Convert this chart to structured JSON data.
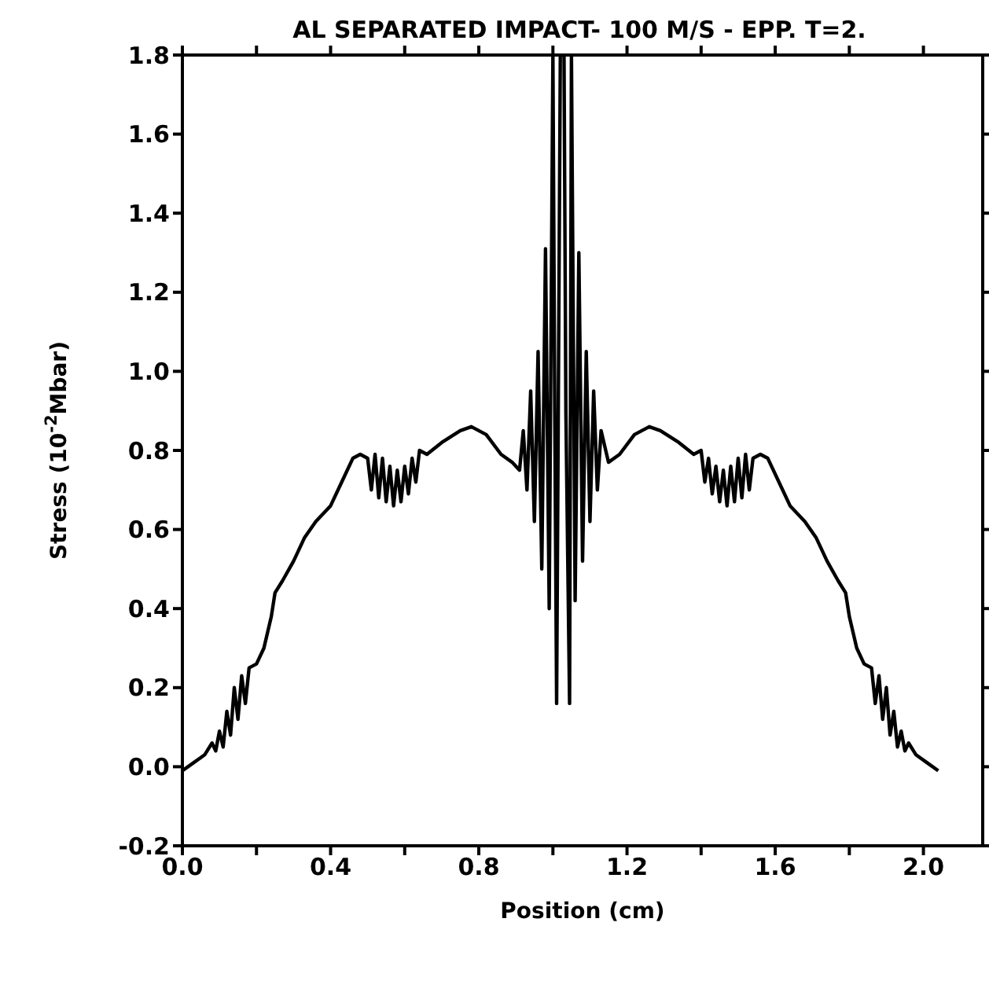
{
  "chart_data": {
    "type": "line",
    "title": "AL SEPARATED IMPACT- 100 M/S -  EPP. T=2.",
    "xlabel": "Position (cm)",
    "ylabel": "Stress (10$^{-2}$Mbar)",
    "xlim": [
      0,
      2.16
    ],
    "ylim": [
      -0.2,
      1.8
    ],
    "xticks": [
      {
        "value": 0,
        "label": "0.0"
      },
      {
        "value": 0.2,
        "label": null
      },
      {
        "value": 0.4,
        "label": "0.4"
      },
      {
        "value": 0.6,
        "label": null
      },
      {
        "value": 0.8,
        "label": "0.8"
      },
      {
        "value": 1.0,
        "label": null
      },
      {
        "value": 1.2,
        "label": "1.2"
      },
      {
        "value": 1.4,
        "label": null
      },
      {
        "value": 1.6,
        "label": "1.6"
      },
      {
        "value": 1.8,
        "label": null
      },
      {
        "value": 2.0,
        "label": "2.0"
      }
    ],
    "yticks": [
      {
        "value": -0.2,
        "label": "-0.2"
      },
      {
        "value": 0,
        "label": "0.0"
      },
      {
        "value": 0.2,
        "label": "0.2"
      },
      {
        "value": 0.4,
        "label": "0.4"
      },
      {
        "value": 0.6,
        "label": "0.6"
      },
      {
        "value": 0.8,
        "label": "0.8"
      },
      {
        "value": 1.0,
        "label": "1.0"
      },
      {
        "value": 1.2,
        "label": "1.2"
      },
      {
        "value": 1.4,
        "label": "1.4"
      },
      {
        "value": 1.6,
        "label": "1.6"
      },
      {
        "value": 1.8,
        "label": "1.8"
      }
    ],
    "legend": false,
    "marker": "none",
    "line_style": "solid",
    "series": [
      {
        "color": "#000000",
        "x": [
          0,
          0.03,
          0.06,
          0.08,
          0.09,
          0.1,
          0.11,
          0.12,
          0.13,
          0.14,
          0.15,
          0.16,
          0.17,
          0.18,
          0.2,
          0.22,
          0.24,
          0.25,
          0.27,
          0.3,
          0.33,
          0.36,
          0.4,
          0.43,
          0.46,
          0.48,
          0.5,
          0.51,
          0.52,
          0.53,
          0.54,
          0.55,
          0.56,
          0.57,
          0.58,
          0.59,
          0.6,
          0.61,
          0.62,
          0.63,
          0.64,
          0.66,
          0.7,
          0.75,
          0.78,
          0.82,
          0.86,
          0.89,
          0.91,
          0.92,
          0.93,
          0.94,
          0.95,
          0.96,
          0.97,
          0.98,
          0.99,
          1.0,
          1.005,
          1.01,
          1.02,
          1.03,
          1.035,
          1.045,
          1.05,
          1.06,
          1.07,
          1.08,
          1.09,
          1.1,
          1.11,
          1.12,
          1.13,
          1.15,
          1.18,
          1.22,
          1.26,
          1.29,
          1.34,
          1.38,
          1.4,
          1.41,
          1.42,
          1.43,
          1.44,
          1.45,
          1.46,
          1.47,
          1.48,
          1.49,
          1.5,
          1.51,
          1.52,
          1.53,
          1.54,
          1.56,
          1.58,
          1.61,
          1.64,
          1.68,
          1.71,
          1.74,
          1.77,
          1.79,
          1.8,
          1.82,
          1.84,
          1.86,
          1.87,
          1.88,
          1.89,
          1.9,
          1.91,
          1.92,
          1.93,
          1.94,
          1.95,
          1.96,
          1.98,
          2.01,
          2.04
        ],
        "values": [
          -0.01,
          0.01,
          0.03,
          0.06,
          0.04,
          0.09,
          0.05,
          0.14,
          0.08,
          0.2,
          0.12,
          0.23,
          0.16,
          0.25,
          0.26,
          0.3,
          0.38,
          0.44,
          0.47,
          0.52,
          0.58,
          0.62,
          0.66,
          0.72,
          0.78,
          0.79,
          0.78,
          0.7,
          0.79,
          0.68,
          0.78,
          0.67,
          0.76,
          0.66,
          0.75,
          0.67,
          0.76,
          0.69,
          0.78,
          0.72,
          0.8,
          0.79,
          0.82,
          0.85,
          0.86,
          0.84,
          0.79,
          0.77,
          0.75,
          0.85,
          0.7,
          0.95,
          0.62,
          1.05,
          0.5,
          1.31,
          0.4,
          1.8,
          0.9,
          0.16,
          1.8,
          1.8,
          0.9,
          0.16,
          1.8,
          0.42,
          1.3,
          0.52,
          1.05,
          0.62,
          0.95,
          0.7,
          0.85,
          0.77,
          0.79,
          0.84,
          0.86,
          0.85,
          0.82,
          0.79,
          0.8,
          0.72,
          0.78,
          0.69,
          0.76,
          0.67,
          0.75,
          0.66,
          0.76,
          0.67,
          0.78,
          0.68,
          0.79,
          0.7,
          0.78,
          0.79,
          0.78,
          0.72,
          0.66,
          0.62,
          0.58,
          0.52,
          0.47,
          0.44,
          0.38,
          0.3,
          0.26,
          0.25,
          0.16,
          0.23,
          0.12,
          0.2,
          0.08,
          0.14,
          0.05,
          0.09,
          0.04,
          0.06,
          0.03,
          0.01,
          -0.01
        ]
      }
    ]
  }
}
